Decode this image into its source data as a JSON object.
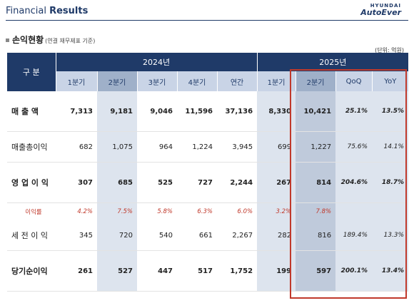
{
  "header": {
    "title_plain": "Financial",
    "title_bold": "Results",
    "logo_top": "HYUNDAI",
    "logo_bottom": "AutoEver"
  },
  "section": {
    "title": "손익현황",
    "subtitle": "(연결 재무제표 기준)",
    "unit": "(단위: 억원)"
  },
  "table": {
    "corner_label": "구   분",
    "group_2024": "2024년",
    "group_2025": "2025년",
    "sub_2024": [
      "1분기",
      "2분기",
      "3분기",
      "4분기",
      "연간"
    ],
    "sub_2025": [
      "1분기",
      "2분기",
      "QoQ",
      "YoY"
    ],
    "rows": [
      {
        "label": "매 출 액",
        "bold": true,
        "values": [
          "7,313",
          "9,181",
          "9,046",
          "11,596",
          "37,136",
          "8,330",
          "10,421",
          "25.1%",
          "13.5%"
        ]
      },
      {
        "label": "매출총이익",
        "bold": false,
        "values": [
          "682",
          "1,075",
          "964",
          "1,224",
          "3,945",
          "699",
          "1,227",
          "75.6%",
          "14.1%"
        ]
      },
      {
        "label": "영 업 이 익",
        "bold": true,
        "values": [
          "307",
          "685",
          "525",
          "727",
          "2,244",
          "267",
          "814",
          "204.6%",
          "18.7%"
        ]
      },
      {
        "label": "이익률",
        "ratio": true,
        "values": [
          "4.2%",
          "7.5%",
          "5.8%",
          "6.3%",
          "6.0%",
          "3.2%",
          "7.8%",
          "",
          ""
        ]
      },
      {
        "label": "세 전 이 익",
        "bold": false,
        "values": [
          "345",
          "720",
          "540",
          "661",
          "2,267",
          "282",
          "816",
          "189.4%",
          "13.3%"
        ]
      },
      {
        "label": "당기순이익",
        "bold": true,
        "values": [
          "261",
          "527",
          "447",
          "517",
          "1,752",
          "199",
          "597",
          "200.1%",
          "13.4%"
        ]
      }
    ]
  }
}
